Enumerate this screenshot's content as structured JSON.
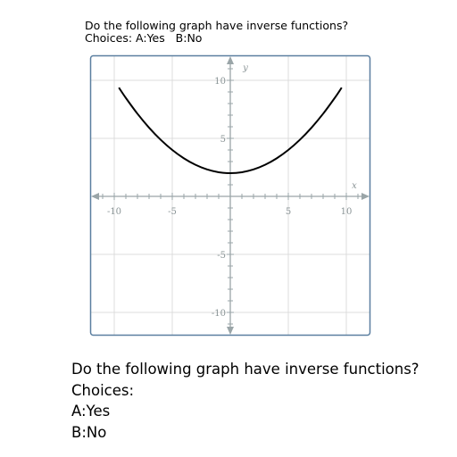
{
  "header": {
    "question": "Do the following graph have inverse functions?",
    "choices_line": "Choices: A:Yes   B:No"
  },
  "chart_data": {
    "type": "line",
    "function": "y = 0.08x^2 + 2",
    "series": [
      {
        "name": "curve",
        "x": [
          -9.6,
          -9,
          -8,
          -7,
          -6,
          -5,
          -4,
          -3,
          -2,
          -1,
          0,
          1,
          2,
          3,
          4,
          5,
          6,
          7,
          8,
          9,
          9.6
        ],
        "y": [
          9.37,
          8.48,
          7.12,
          5.92,
          4.88,
          4.0,
          3.28,
          2.72,
          2.32,
          2.08,
          2.0,
          2.08,
          2.32,
          2.72,
          3.28,
          4.0,
          4.88,
          5.92,
          7.12,
          8.48,
          9.37
        ]
      }
    ],
    "xlim": [
      -12,
      12
    ],
    "ylim": [
      -12,
      12
    ],
    "x_ticks": [
      "-10",
      "-5",
      "5",
      "10"
    ],
    "y_ticks": [
      "10",
      "5",
      "-5",
      "-10"
    ],
    "xlabel": "x",
    "ylabel": "y",
    "grid": true
  },
  "question_block": {
    "question": "Do the following graph have inverse functions?",
    "choices_label": "Choices:",
    "option_a": "A:Yes",
    "option_b": "B:No"
  },
  "colors": {
    "frame": "#5b7fa0",
    "grid": "#dcdcdc",
    "axis": "#9aa5a8",
    "curve": "#000000"
  }
}
